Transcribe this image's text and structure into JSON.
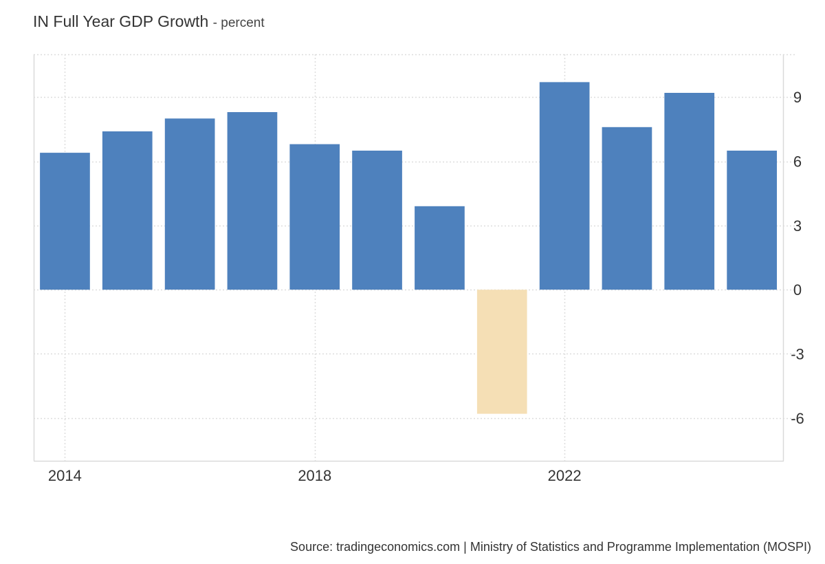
{
  "chart_data": {
    "type": "bar",
    "title": "IN Full Year GDP Growth",
    "subtitle": "- percent",
    "x": [
      2014,
      2015,
      2016,
      2017,
      2018,
      2019,
      2020,
      2021,
      2022,
      2023,
      2024,
      2025
    ],
    "values": [
      6.4,
      7.4,
      8.0,
      8.3,
      6.8,
      6.5,
      3.9,
      -5.8,
      9.7,
      7.6,
      9.2,
      6.5
    ],
    "xlim": [
      2013.5,
      2025.5
    ],
    "ylim": [
      -8,
      11
    ],
    "x_ticks": [
      2014,
      2018,
      2022
    ],
    "x_tick_labels": [
      "2014",
      "2018",
      "2022"
    ],
    "y_ticks": [
      -6,
      -3,
      0,
      3,
      6,
      9
    ],
    "y_tick_labels": [
      "-6",
      "-3",
      "0",
      "3",
      "6",
      "9"
    ],
    "y_axis_position": "right",
    "grid": true,
    "positive_color": "#4e81bd",
    "negative_color": "#f5dfb5",
    "grid_color": "#dddddd"
  },
  "source": "Source: tradingeconomics.com | Ministry of Statistics and Programme Implementation (MOSPI)"
}
